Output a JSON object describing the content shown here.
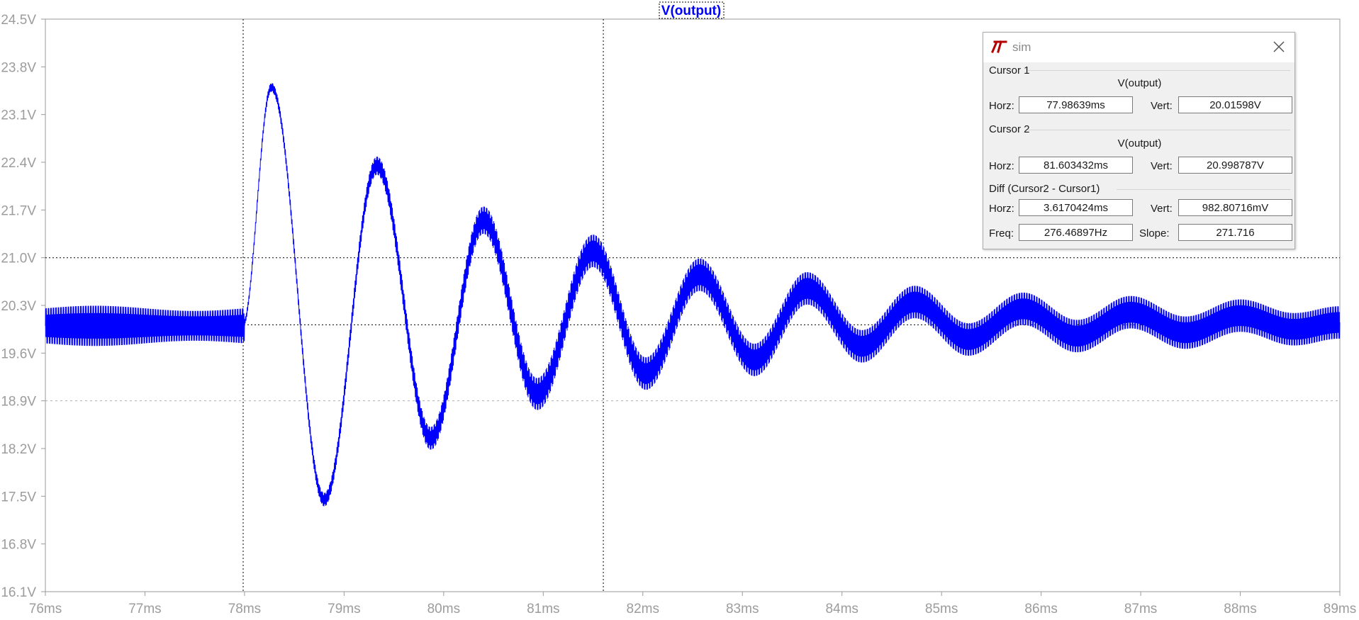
{
  "plot": {
    "title": "V(output)",
    "trace_color": "#0000ff",
    "grid_color": "#9a9a9a",
    "cursor_line_color": "#000000"
  },
  "chart_data": {
    "type": "line",
    "title": "V(output)",
    "xlabel": "",
    "ylabel": "",
    "x_unit": "ms",
    "y_unit": "V",
    "xlim": [
      76,
      89
    ],
    "ylim": [
      16.1,
      24.5
    ],
    "x_ticks": [
      "76ms",
      "77ms",
      "78ms",
      "79ms",
      "80ms",
      "81ms",
      "82ms",
      "83ms",
      "84ms",
      "85ms",
      "86ms",
      "87ms",
      "88ms",
      "89ms"
    ],
    "y_ticks": [
      "24.5V",
      "23.8V",
      "23.1V",
      "22.4V",
      "21.7V",
      "21.0V",
      "20.3V",
      "19.6V",
      "18.9V",
      "18.2V",
      "17.5V",
      "16.8V",
      "16.1V"
    ],
    "series": [
      {
        "name": "V(output)",
        "description_points": [
          [
            76.0,
            20.0
          ],
          [
            77.98,
            20.0
          ],
          [
            78.27,
            23.5
          ],
          [
            78.8,
            17.45
          ],
          [
            79.33,
            22.35
          ],
          [
            79.87,
            18.35
          ],
          [
            80.4,
            21.55
          ],
          [
            80.94,
            19.0
          ],
          [
            81.5,
            21.1
          ],
          [
            82.03,
            19.3
          ],
          [
            82.57,
            20.75
          ],
          [
            83.12,
            19.5
          ],
          [
            83.65,
            20.55
          ],
          [
            84.2,
            19.7
          ],
          [
            84.73,
            20.35
          ],
          [
            85.27,
            19.8
          ],
          [
            85.82,
            20.25
          ],
          [
            86.36,
            19.85
          ],
          [
            86.9,
            20.2
          ],
          [
            87.45,
            19.9
          ],
          [
            88.0,
            20.15
          ],
          [
            88.54,
            19.95
          ],
          [
            89.0,
            20.05
          ]
        ]
      }
    ],
    "grid": true
  },
  "dialog": {
    "title": "sim",
    "cursor1": {
      "group_label": "Cursor 1",
      "trace": "V(output)",
      "horz_label": "Horz:",
      "horz_value": "77.98639ms",
      "vert_label": "Vert:",
      "vert_value": "20.01598V"
    },
    "cursor2": {
      "group_label": "Cursor 2",
      "trace": "V(output)",
      "horz_label": "Horz:",
      "horz_value": "81.603432ms",
      "vert_label": "Vert:",
      "vert_value": "20.998787V"
    },
    "diff": {
      "group_label": "Diff (Cursor2 - Cursor1)",
      "horz_label": "Horz:",
      "horz_value": "3.6170424ms",
      "vert_label": "Vert:",
      "vert_value": "982.80716mV",
      "freq_label": "Freq:",
      "freq_value": "276.46897Hz",
      "slope_label": "Slope:",
      "slope_value": "271.716"
    }
  }
}
